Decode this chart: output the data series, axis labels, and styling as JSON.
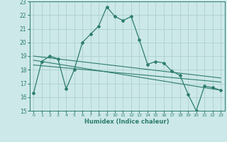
{
  "title": "",
  "xlabel": "Humidex (Indice chaleur)",
  "xlim": [
    -0.5,
    23.5
  ],
  "ylim": [
    15,
    23
  ],
  "yticks": [
    15,
    16,
    17,
    18,
    19,
    20,
    21,
    22,
    23
  ],
  "xticks": [
    0,
    1,
    2,
    3,
    4,
    5,
    6,
    7,
    8,
    9,
    10,
    11,
    12,
    13,
    14,
    15,
    16,
    17,
    18,
    19,
    20,
    21,
    22,
    23
  ],
  "bg_color": "#cce8e8",
  "line_color": "#2e7d6e",
  "grid_color": "#a8cccc",
  "line1_x": [
    0,
    1,
    2,
    3,
    4,
    5,
    6,
    7,
    8,
    9,
    10,
    11,
    12,
    13,
    14,
    15,
    16,
    17,
    18,
    19,
    20,
    21,
    22,
    23
  ],
  "line1_y": [
    16.3,
    18.6,
    19.0,
    18.8,
    16.6,
    18.0,
    20.0,
    20.6,
    21.2,
    22.6,
    21.9,
    21.6,
    21.9,
    20.2,
    18.4,
    18.6,
    18.5,
    17.9,
    17.6,
    16.2,
    15.0,
    16.8,
    16.7,
    16.5
  ],
  "line2_x": [
    0,
    23
  ],
  "line2_y": [
    19.0,
    17.4
  ],
  "line3_x": [
    0,
    23
  ],
  "line3_y": [
    18.7,
    16.5
  ],
  "line4_x": [
    0,
    23
  ],
  "line4_y": [
    18.35,
    17.1
  ]
}
